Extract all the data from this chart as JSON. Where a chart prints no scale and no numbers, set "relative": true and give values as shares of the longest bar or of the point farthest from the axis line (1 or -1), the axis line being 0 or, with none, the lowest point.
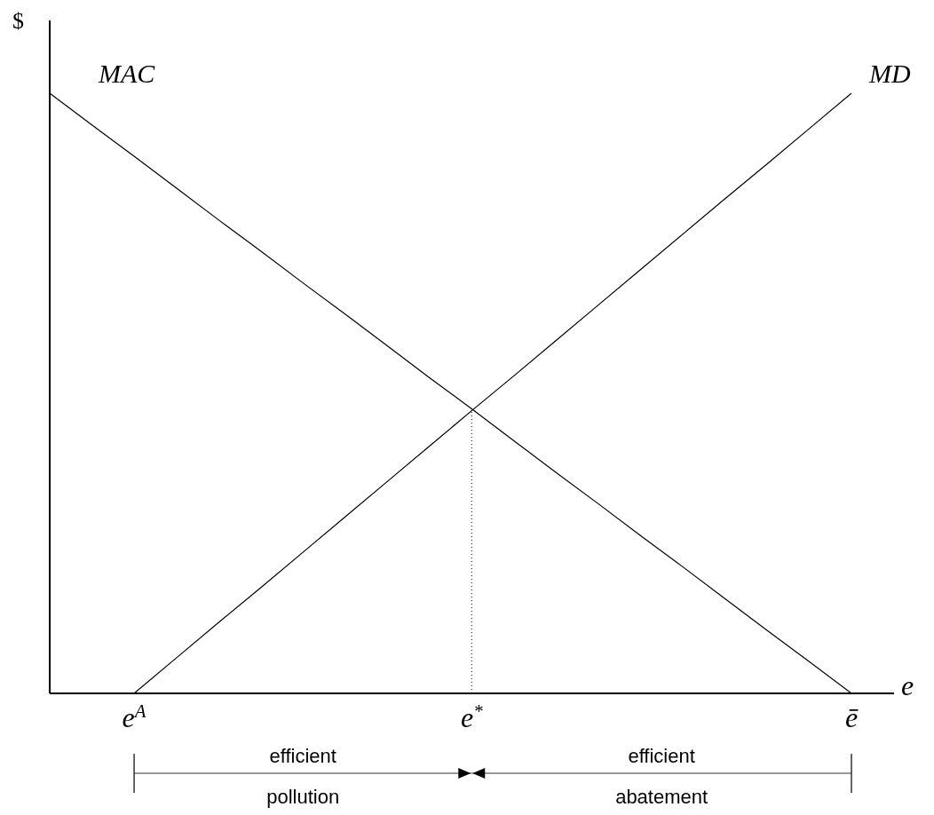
{
  "chart_data": {
    "type": "line",
    "relative": true,
    "ylabel": "$",
    "xlabel": "e",
    "categories": [
      null,
      null,
      "e$^{A}$",
      null,
      null,
      null,
      null,
      null,
      null,
      null,
      "e$^{*}$",
      null,
      null,
      null,
      null,
      null,
      null,
      null,
      null,
      "ē"
    ],
    "series": [
      {
        "name": "MAC",
        "color": "#000000",
        "values": [
          1,
          0.947,
          0.895,
          0.842,
          0.789,
          0.737,
          0.684,
          0.632,
          0.579,
          0.526,
          0.474,
          0.421,
          0.368,
          0.316,
          0.263,
          0.211,
          0.158,
          0.105,
          0.053,
          0
        ]
      },
      {
        "name": "MD",
        "color": "#000000",
        "values": [
          null,
          null,
          0,
          0.059,
          0.118,
          0.176,
          0.235,
          0.294,
          0.353,
          0.412,
          0.471,
          0.529,
          0.588,
          0.647,
          0.706,
          0.765,
          0.824,
          0.882,
          0.941,
          1
        ]
      }
    ],
    "ref_lines": [
      {
        "axis": "x",
        "value": "e$^{*}$",
        "line_style": "dotted",
        "color": "#000000"
      }
    ],
    "annotations": [
      "efficient",
      "pollution",
      "efficient",
      "abatement"
    ],
    "marker": "none",
    "line_style": "solid",
    "grid": false
  }
}
